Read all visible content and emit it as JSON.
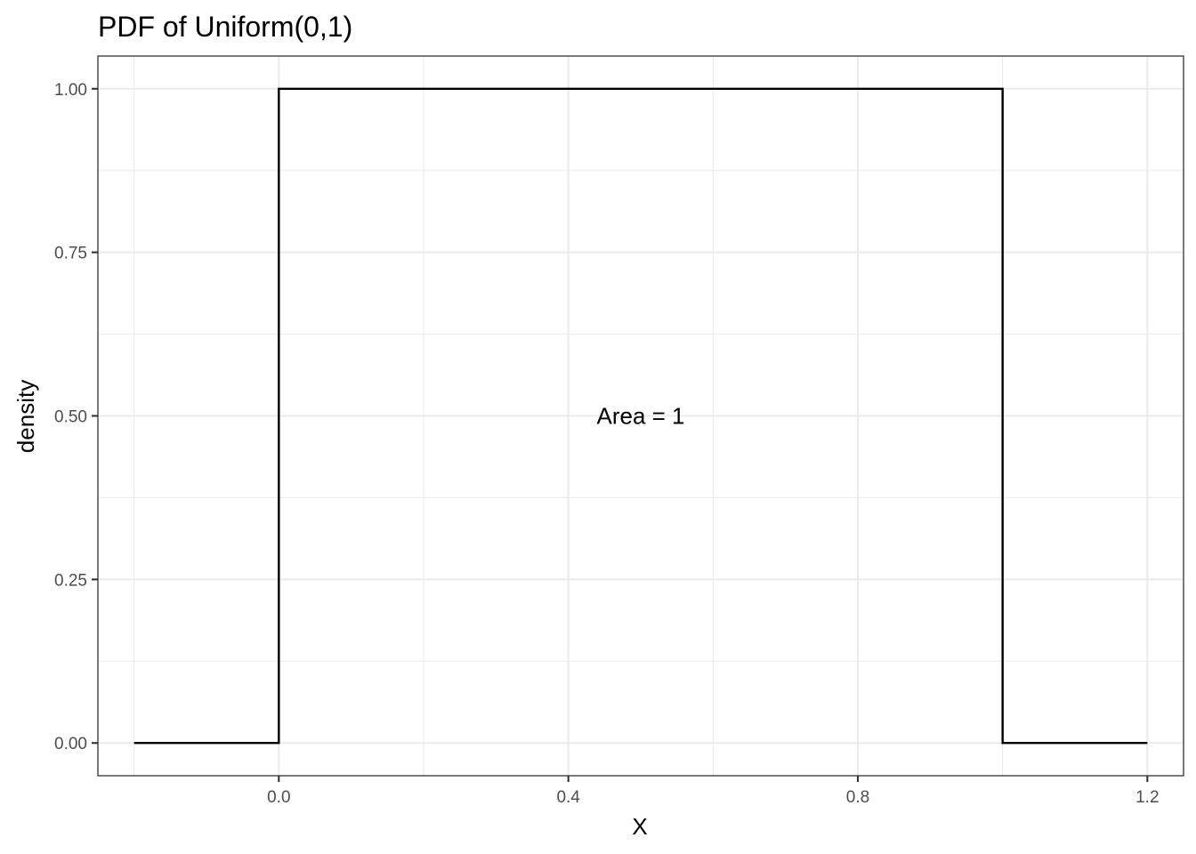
{
  "chart_data": {
    "type": "line",
    "title": "PDF of Uniform(0,1)",
    "xlabel": "X",
    "ylabel": "density",
    "xlim": [
      -0.25,
      1.25
    ],
    "ylim": [
      -0.05,
      1.05
    ],
    "x_ticks": [
      0.0,
      0.4,
      0.8,
      1.2
    ],
    "x_tick_labels": [
      "0.0",
      "0.4",
      "0.8",
      "1.2"
    ],
    "x_minor_ticks": [
      -0.2,
      0.2,
      0.6,
      1.0
    ],
    "y_ticks": [
      0.0,
      0.25,
      0.5,
      0.75,
      1.0
    ],
    "y_tick_labels": [
      "0.00",
      "0.25",
      "0.50",
      "0.75",
      "1.00"
    ],
    "y_minor_ticks": [
      0.125,
      0.375,
      0.625,
      0.875
    ],
    "grid": true,
    "legend": "none",
    "colors": {
      "line": "#000000",
      "grid": "#ebebeb",
      "border": "#333333",
      "tick_label": "#4d4d4d"
    },
    "series": [
      {
        "x": [
          -0.2,
          0.0,
          0.0,
          1.0,
          1.0,
          1.2
        ],
        "y": [
          0.0,
          0.0,
          1.0,
          1.0,
          0.0,
          0.0
        ]
      }
    ],
    "annotations": [
      {
        "text": "Area = 1",
        "x": 0.5,
        "y": 0.5
      }
    ]
  }
}
